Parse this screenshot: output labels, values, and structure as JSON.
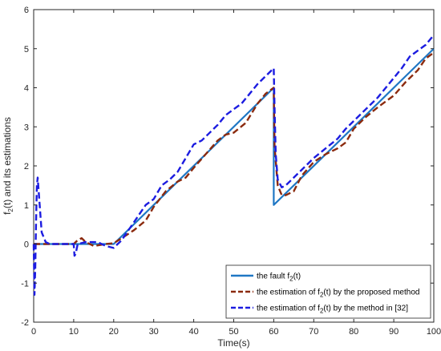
{
  "chart_data": {
    "type": "line",
    "xlabel": "Time(s)",
    "ylabel": {
      "main": "f",
      "sub": "2",
      "rest": "(t) and its estimations"
    },
    "xlim": [
      0,
      100
    ],
    "ylim": [
      -2,
      6
    ],
    "xticks": [
      0,
      10,
      20,
      30,
      40,
      50,
      60,
      70,
      80,
      90,
      100
    ],
    "yticks": [
      -2,
      -1,
      0,
      1,
      2,
      3,
      4,
      5,
      6
    ],
    "grid": false,
    "legend_position": "bottom-right",
    "series": [
      {
        "name": {
          "main": "the fault f",
          "sub": "2",
          "rest": "(t)"
        },
        "color": "#1f77c4",
        "style": "solid",
        "x": [
          0,
          20,
          60,
          60,
          100
        ],
        "y": [
          0,
          0,
          4.0,
          1.0,
          5.0
        ]
      },
      {
        "name": {
          "main": "the estimation of f",
          "sub": "2",
          "rest": "(t) by the proposed method"
        },
        "color": "#8b2a0e",
        "style": "dashed",
        "x": [
          0,
          10,
          11,
          12,
          13,
          15,
          18,
          20,
          22,
          25,
          28,
          30,
          33,
          36,
          38,
          40,
          43,
          46,
          48,
          50,
          53,
          56,
          58,
          60,
          60.2,
          61,
          62,
          63,
          65,
          67,
          70,
          73,
          76,
          78,
          80,
          83,
          86,
          88,
          90,
          93,
          96,
          98,
          100
        ],
        "y": [
          0,
          0,
          0.1,
          0.15,
          0.05,
          -0.05,
          0.0,
          0.02,
          0.15,
          0.35,
          0.6,
          0.95,
          1.35,
          1.6,
          1.7,
          1.95,
          2.3,
          2.65,
          2.8,
          2.85,
          3.1,
          3.6,
          3.85,
          4.0,
          2.5,
          1.5,
          1.25,
          1.25,
          1.35,
          1.75,
          2.1,
          2.3,
          2.45,
          2.6,
          2.95,
          3.25,
          3.5,
          3.65,
          3.8,
          4.15,
          4.45,
          4.75,
          4.9
        ]
      },
      {
        "name": {
          "main": "the estimation of f",
          "sub": "2",
          "rest": "(t) by the method in [32]"
        },
        "color": "#1c1ce0",
        "style": "dashed",
        "x": [
          0,
          0.2,
          0.4,
          0.6,
          0.8,
          1.0,
          1.5,
          2.0,
          3.0,
          4.0,
          10.0,
          10.2,
          10.5,
          11,
          13,
          16,
          18,
          20,
          22,
          24,
          26,
          28,
          30,
          32,
          34,
          36,
          38,
          40,
          42,
          44,
          46,
          48,
          50,
          52,
          54,
          56,
          58,
          60,
          60.2,
          60.5,
          61,
          62,
          63,
          65,
          67,
          70,
          73,
          76,
          78,
          80,
          83,
          86,
          88,
          90,
          92,
          94,
          96,
          98,
          100
        ],
        "y": [
          0,
          -1.3,
          -0.6,
          0.6,
          1.5,
          1.7,
          1.0,
          0.3,
          0.05,
          0,
          0,
          -0.3,
          -0.25,
          0.0,
          0.05,
          0.05,
          -0.05,
          -0.1,
          0.1,
          0.4,
          0.7,
          1.0,
          1.15,
          1.5,
          1.65,
          1.85,
          2.2,
          2.55,
          2.65,
          2.85,
          3.05,
          3.3,
          3.45,
          3.6,
          3.85,
          4.1,
          4.3,
          4.5,
          3.5,
          2.3,
          1.65,
          1.45,
          1.5,
          1.7,
          1.9,
          2.2,
          2.45,
          2.7,
          2.95,
          3.15,
          3.45,
          3.75,
          4.0,
          4.25,
          4.5,
          4.8,
          4.95,
          5.1,
          5.35
        ]
      }
    ]
  }
}
